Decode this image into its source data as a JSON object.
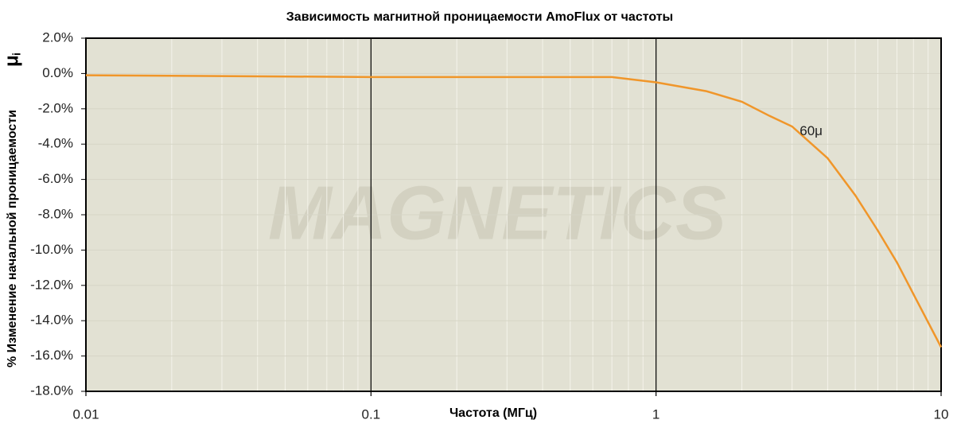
{
  "chart_data": {
    "type": "line",
    "title": "Зависимость магнитной проницаемости AmoFlux  от частоты",
    "xlabel": "Частота (МГц)",
    "ylabel": "% Изменение начальной проницаемости",
    "ylabel_symbol": "μ",
    "ylabel_subscript": "i",
    "watermark": "MAGNETICS",
    "x_log": true,
    "xlim": [
      0.01,
      10
    ],
    "xticks": [
      0.01,
      0.1,
      1,
      10
    ],
    "xminor": [
      0.02,
      0.03,
      0.04,
      0.05,
      0.06,
      0.07,
      0.08,
      0.09,
      0.2,
      0.3,
      0.4,
      0.5,
      0.6,
      0.7,
      0.8,
      0.9,
      2,
      3,
      4,
      5,
      6,
      7,
      8,
      9
    ],
    "ylim": [
      -18,
      2
    ],
    "yticks": [
      {
        "value": 2,
        "label": "2.0%"
      },
      {
        "value": 0,
        "label": "0.0%"
      },
      {
        "value": -2,
        "label": "-2.0%"
      },
      {
        "value": -4,
        "label": "-4.0%"
      },
      {
        "value": -6,
        "label": "-6.0%"
      },
      {
        "value": -8,
        "label": "-8.0%"
      },
      {
        "value": -10,
        "label": "-10.0%"
      },
      {
        "value": -12,
        "label": "-12.0%"
      },
      {
        "value": -14,
        "label": "-14.0%"
      },
      {
        "value": -16,
        "label": "-16.0%"
      },
      {
        "value": -18,
        "label": "-18.0%"
      }
    ],
    "grid": true,
    "series": [
      {
        "name": "60μ",
        "color": "#f0962a",
        "x": [
          0.01,
          0.1,
          0.7,
          1,
          1.5,
          2,
          2.5,
          3,
          4,
          5,
          6,
          7,
          8,
          10
        ],
        "values": [
          -0.1,
          -0.2,
          -0.2,
          -0.5,
          -1.0,
          -1.6,
          -2.4,
          -3.0,
          -4.8,
          -6.9,
          -8.9,
          -10.7,
          -12.5,
          -15.5
        ]
      }
    ],
    "annotation": {
      "text": "60μ",
      "x": 3.5,
      "y": -3.3
    }
  }
}
